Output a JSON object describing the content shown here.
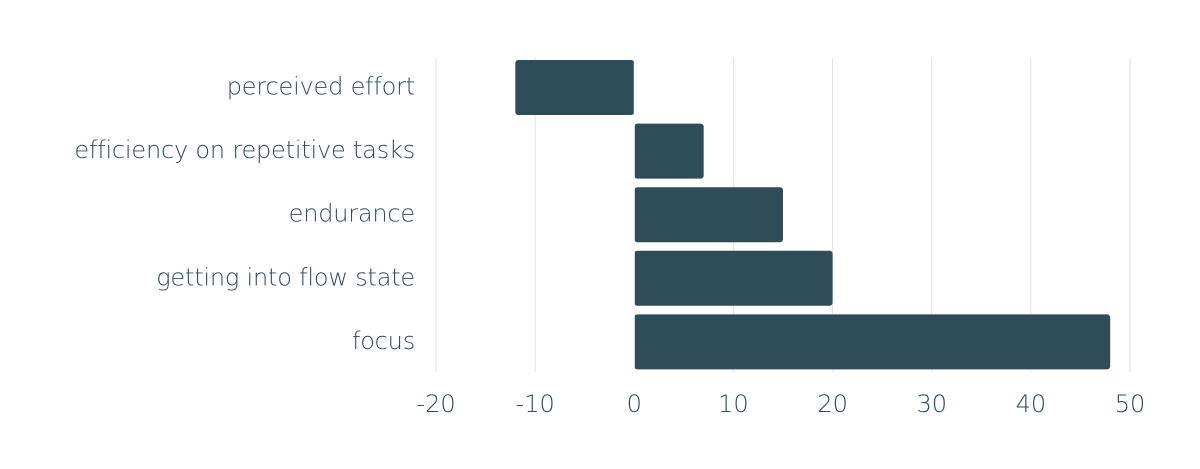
{
  "chart_data": {
    "type": "bar",
    "orientation": "horizontal",
    "title": "",
    "xlabel": "",
    "ylabel": "",
    "categories": [
      "perceived effort",
      "efficiency on repetitive tasks",
      "endurance",
      "getting into flow state",
      "focus"
    ],
    "values": [
      -12,
      7,
      15,
      20,
      48
    ],
    "xlim": [
      -20,
      50
    ],
    "xticks": [
      -20,
      -10,
      0,
      10,
      20,
      30,
      40,
      50
    ],
    "xtick_labels": [
      "-20",
      "-10",
      "0",
      "10",
      "20",
      "30",
      "40",
      "50"
    ],
    "grid": "vertical",
    "legend": "none",
    "colors": {
      "bar": "#2f4d58",
      "text": "#2f4d58",
      "grid": "#e3e3e3",
      "background": "#ffffff"
    }
  }
}
